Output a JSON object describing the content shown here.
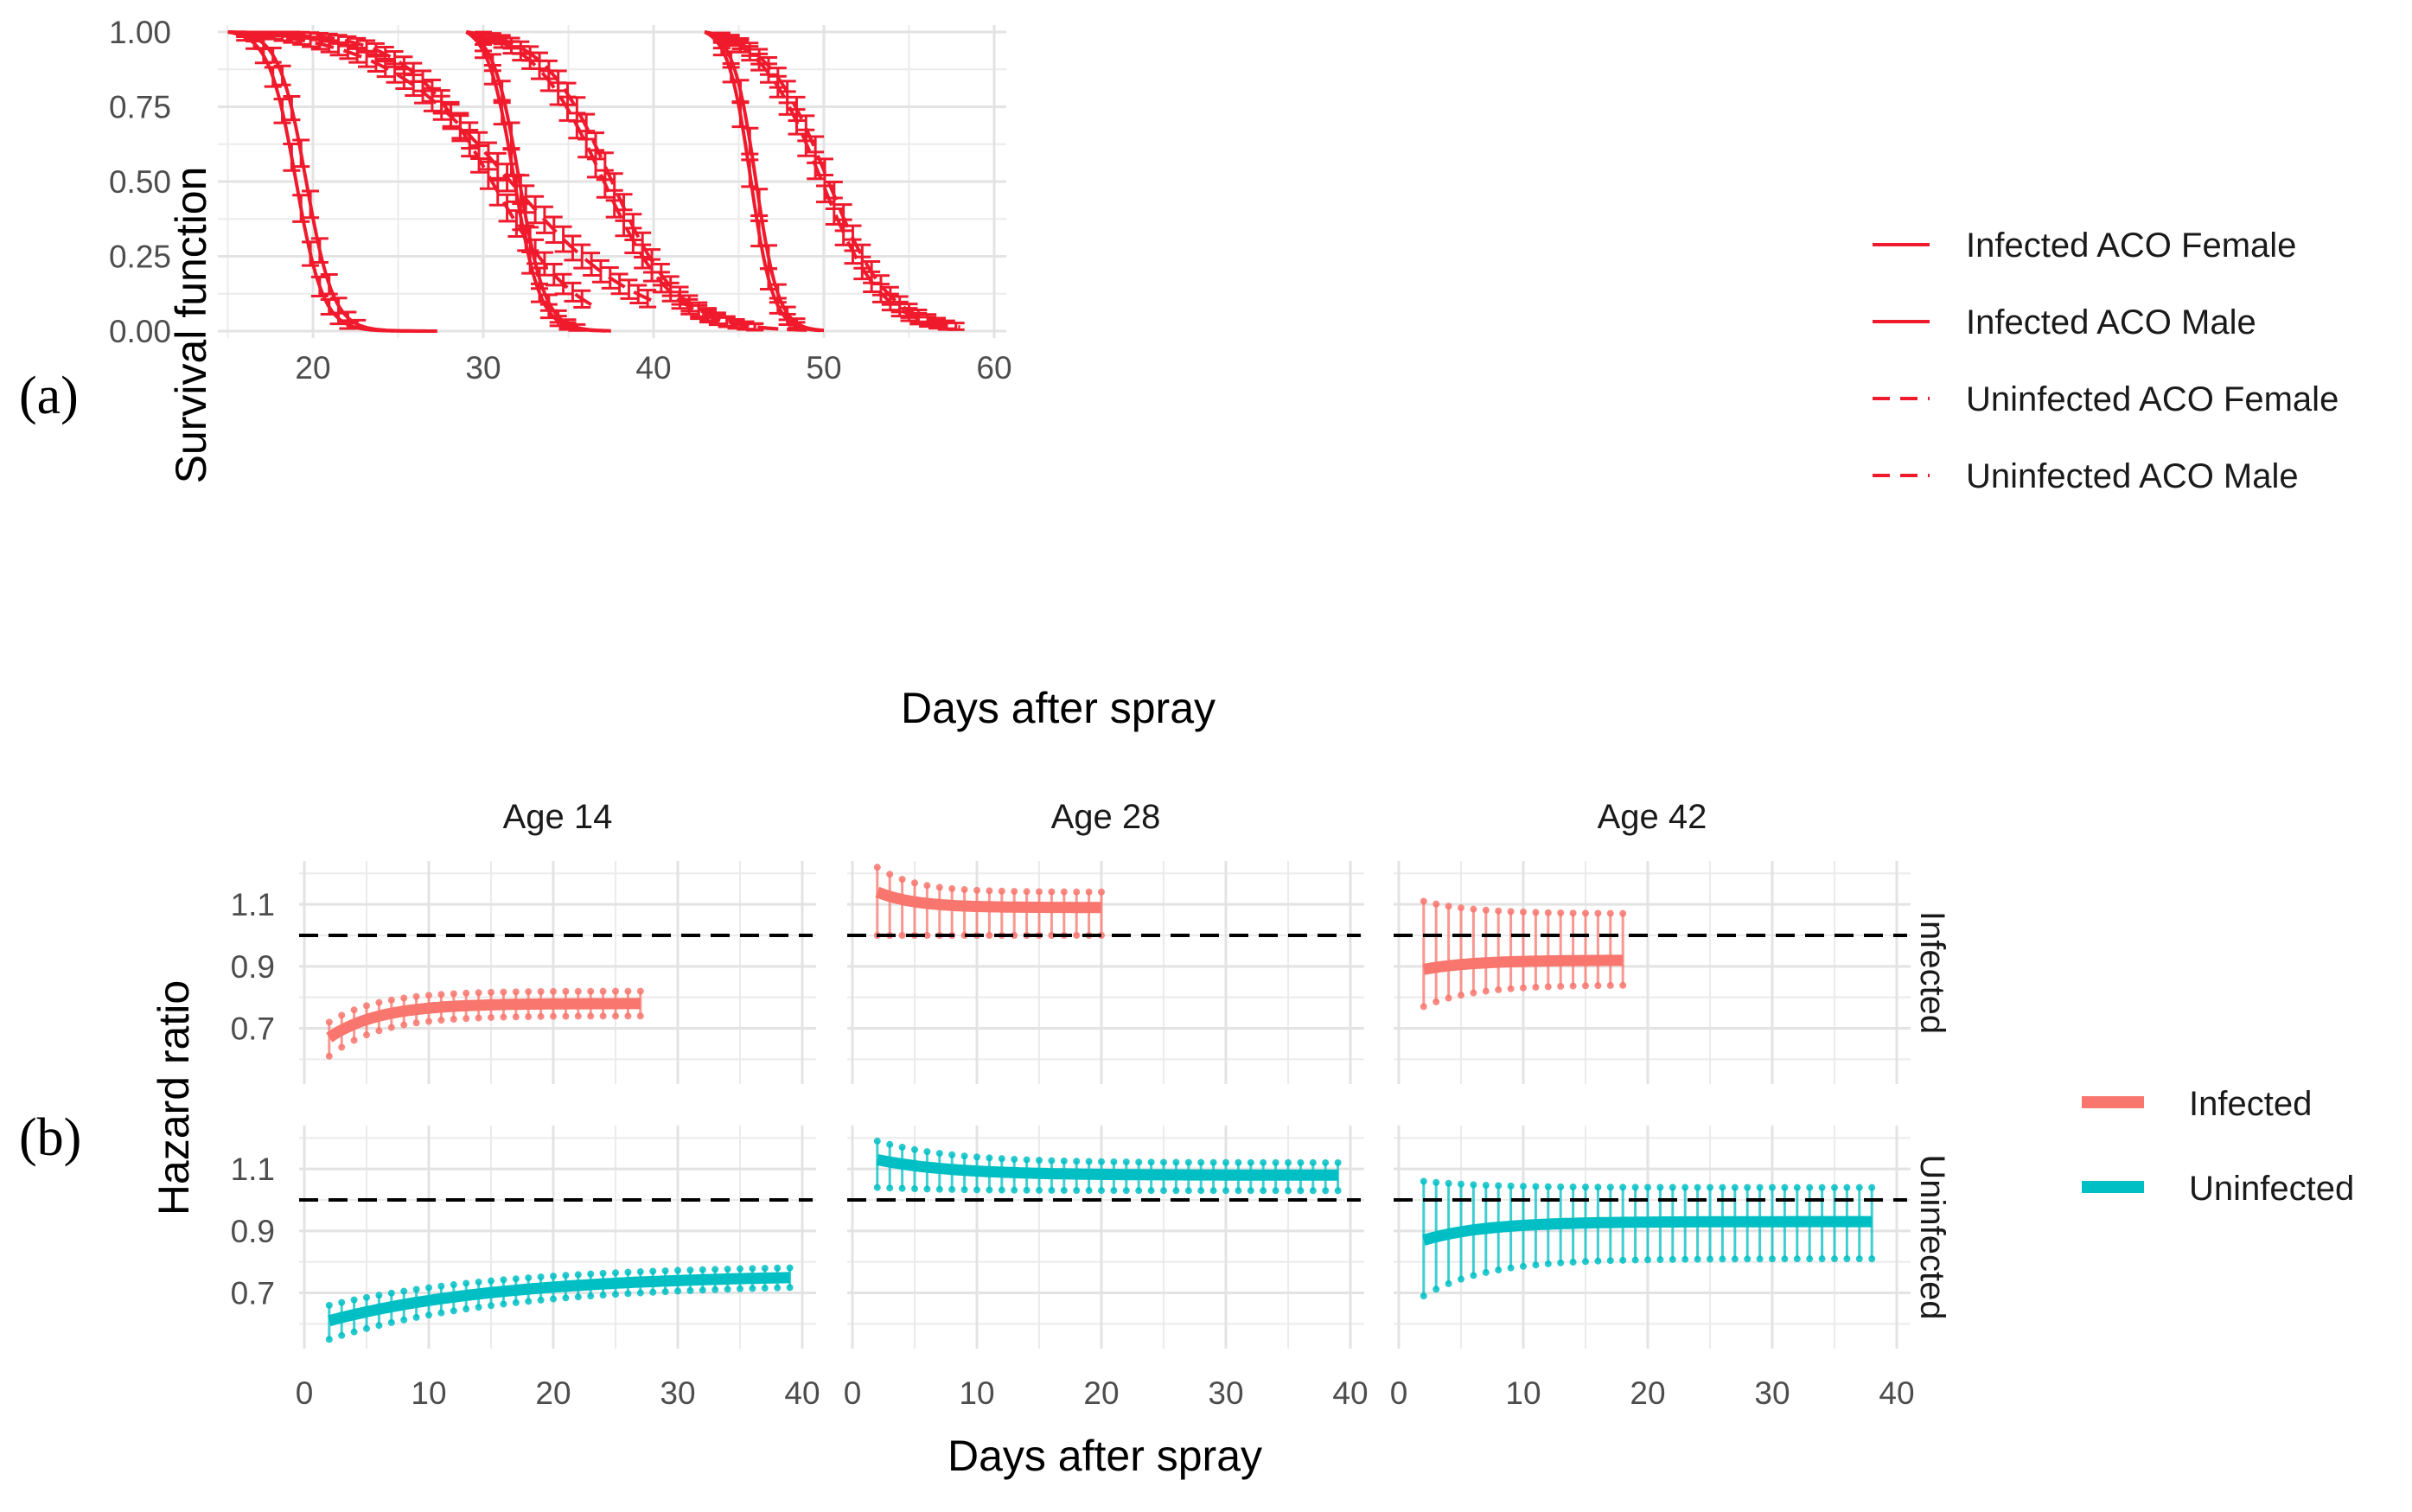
{
  "figure": {
    "panel_a_label": "(a)",
    "panel_b_label": "(b)"
  },
  "colors": {
    "survival": "#f01a2d",
    "infected": "#f8766d",
    "uninfected": "#00bfc4",
    "grid": "#ebebeb",
    "refline": "#000000"
  },
  "chart_data": [
    {
      "id": "survival",
      "type": "line",
      "title": "",
      "xlabel": "Days after spray",
      "ylabel": "Survival function",
      "xlim": [
        14,
        60
      ],
      "ylim": [
        0,
        1
      ],
      "xticks": [
        "20",
        "30",
        "40",
        "50",
        "60"
      ],
      "yticks": [
        "0.00",
        "0.25",
        "0.50",
        "0.75",
        "1.00"
      ],
      "legend": {
        "position": "right",
        "entries": [
          "Infected ACO Female",
          "Infected ACO Male",
          "Uninfected ACO Female",
          "Uninfected ACO Male"
        ]
      },
      "series": [
        {
          "name": "Infected ACO Female",
          "dash": false,
          "start": 15,
          "end": 27.3,
          "median": 19.6,
          "slope": 1.25
        },
        {
          "name": "Infected ACO Male",
          "dash": false,
          "start": 15,
          "end": 27,
          "median": 19.0,
          "slope": 1.25
        },
        {
          "name": "Uninfected ACO Female",
          "dash": true,
          "start": 15,
          "end": 36.5,
          "median": 30.5,
          "slope": 0.4
        },
        {
          "name": "Uninfected ACO Male",
          "dash": true,
          "start": 15,
          "end": 40,
          "median": 31.5,
          "slope": 0.26
        },
        {
          "name": "Infected ACO Female",
          "dash": false,
          "start": 29,
          "end": 37.5,
          "median": 32.1,
          "slope": 1.3
        },
        {
          "name": "Infected ACO Male",
          "dash": false,
          "start": 29,
          "end": 37.2,
          "median": 31.8,
          "slope": 1.3
        },
        {
          "name": "Uninfected ACO Female",
          "dash": true,
          "start": 29,
          "end": 48,
          "median": 37.5,
          "slope": 0.5
        },
        {
          "name": "Uninfected ACO Male",
          "dash": true,
          "start": 29,
          "end": 49,
          "median": 37.0,
          "slope": 0.48
        },
        {
          "name": "Infected ACO Female",
          "dash": false,
          "start": 43,
          "end": 50,
          "median": 46.0,
          "slope": 1.5
        },
        {
          "name": "Infected ACO Male",
          "dash": false,
          "start": 43,
          "end": 49.8,
          "median": 45.7,
          "slope": 1.5
        },
        {
          "name": "Uninfected ACO Female",
          "dash": true,
          "start": 43,
          "end": 58,
          "median": 50.2,
          "slope": 0.55
        },
        {
          "name": "Uninfected ACO Male",
          "dash": true,
          "start": 43,
          "end": 57.5,
          "median": 49.8,
          "slope": 0.55
        }
      ]
    },
    {
      "id": "hazard",
      "type": "line",
      "title": "",
      "xlabel": "Days after spray",
      "ylabel": "Hazard ratio",
      "xlim": [
        0,
        40
      ],
      "ylim": [
        0.52,
        1.24
      ],
      "xticks": [
        "0",
        "10",
        "20",
        "30",
        "40"
      ],
      "yticks": [
        "0.7",
        "0.9",
        "1.1"
      ],
      "reference_line": 1.0,
      "columns": [
        "Age 14",
        "Age 28",
        "Age 42"
      ],
      "rows": [
        "Infected",
        "Uninfected"
      ],
      "legend": {
        "position": "right",
        "entries": [
          "Infected",
          "Uninfected"
        ]
      },
      "panels": [
        {
          "row": "Infected",
          "col": "Age 14",
          "x_end": 27,
          "hr_start": 0.67,
          "hr_end": 0.78,
          "lo_start": 0.61,
          "lo_end": 0.74,
          "hi_start": 0.72,
          "hi_end": 0.82,
          "tau": 4
        },
        {
          "row": "Infected",
          "col": "Age 28",
          "x_end": 20,
          "hr_start": 1.14,
          "hr_end": 1.09,
          "lo_start": 1.0,
          "lo_end": 1.0,
          "hi_start": 1.22,
          "hi_end": 1.14,
          "tau": 3
        },
        {
          "row": "Infected",
          "col": "Age 42",
          "x_end": 18,
          "hr_start": 0.89,
          "hr_end": 0.92,
          "lo_start": 0.77,
          "lo_end": 0.84,
          "hi_start": 1.11,
          "hi_end": 1.07,
          "tau": 4
        },
        {
          "row": "Uninfected",
          "col": "Age 14",
          "x_end": 39,
          "hr_start": 0.61,
          "hr_end": 0.76,
          "lo_start": 0.55,
          "lo_end": 0.73,
          "hi_start": 0.66,
          "hi_end": 0.79,
          "tau": 14
        },
        {
          "row": "Uninfected",
          "col": "Age 28",
          "x_end": 39,
          "hr_start": 1.13,
          "hr_end": 1.08,
          "lo_start": 1.04,
          "lo_end": 1.03,
          "hi_start": 1.19,
          "hi_end": 1.12,
          "tau": 6
        },
        {
          "row": "Uninfected",
          "col": "Age 42",
          "x_end": 38,
          "hr_start": 0.87,
          "hr_end": 0.93,
          "lo_start": 0.69,
          "lo_end": 0.81,
          "hi_start": 1.06,
          "hi_end": 1.04,
          "tau": 5
        }
      ]
    }
  ]
}
